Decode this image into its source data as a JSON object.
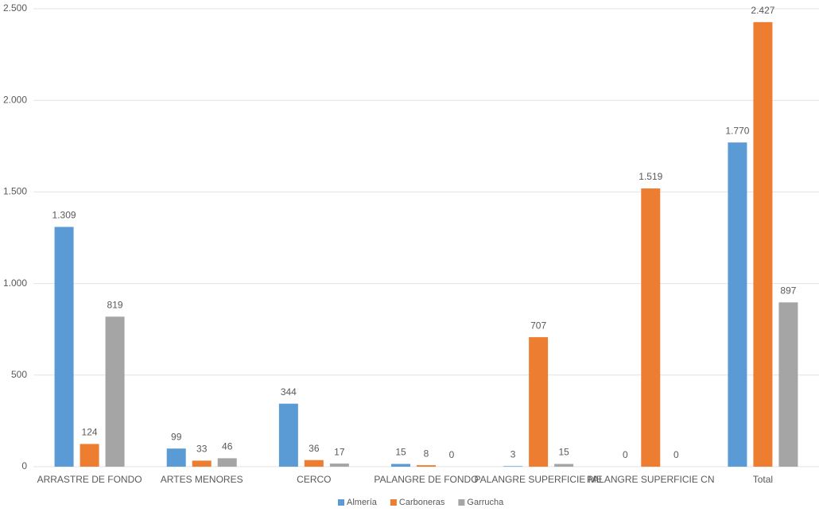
{
  "chart_data": {
    "type": "bar",
    "categories": [
      "ARRASTRE DE FONDO",
      "ARTES MENORES",
      "CERCO",
      "PALANGRE DE FONDO",
      "PALANGRE SUPERFICIE ME",
      "PALANGRE SUPERFICIE CN",
      "Total"
    ],
    "series": [
      {
        "name": "Almería",
        "color": "#5b9bd5",
        "values": [
          1309,
          99,
          344,
          15,
          3,
          0,
          1770
        ],
        "value_labels": [
          "1.309",
          "99",
          "344",
          "15",
          "3",
          "0",
          "1.770"
        ]
      },
      {
        "name": "Carboneras",
        "color": "#ed7d31",
        "values": [
          124,
          33,
          36,
          8,
          707,
          1519,
          2427
        ],
        "value_labels": [
          "124",
          "33",
          "36",
          "8",
          "707",
          "1.519",
          "2.427"
        ]
      },
      {
        "name": "Garrucha",
        "color": "#a5a5a5",
        "values": [
          819,
          46,
          17,
          0,
          15,
          0,
          897
        ],
        "value_labels": [
          "819",
          "46",
          "17",
          "0",
          "15",
          "0",
          "897"
        ]
      }
    ],
    "ylim": [
      0,
      2500
    ],
    "yticks": [
      0,
      500,
      {
        "value": 1000,
        "label": "1.000"
      },
      {
        "value": 1500,
        "label": "1.500"
      },
      {
        "value": 2000,
        "label": "2.000"
      },
      {
        "value": 2500,
        "label": "2.500"
      }
    ],
    "grid": true,
    "legend": "bottom"
  }
}
